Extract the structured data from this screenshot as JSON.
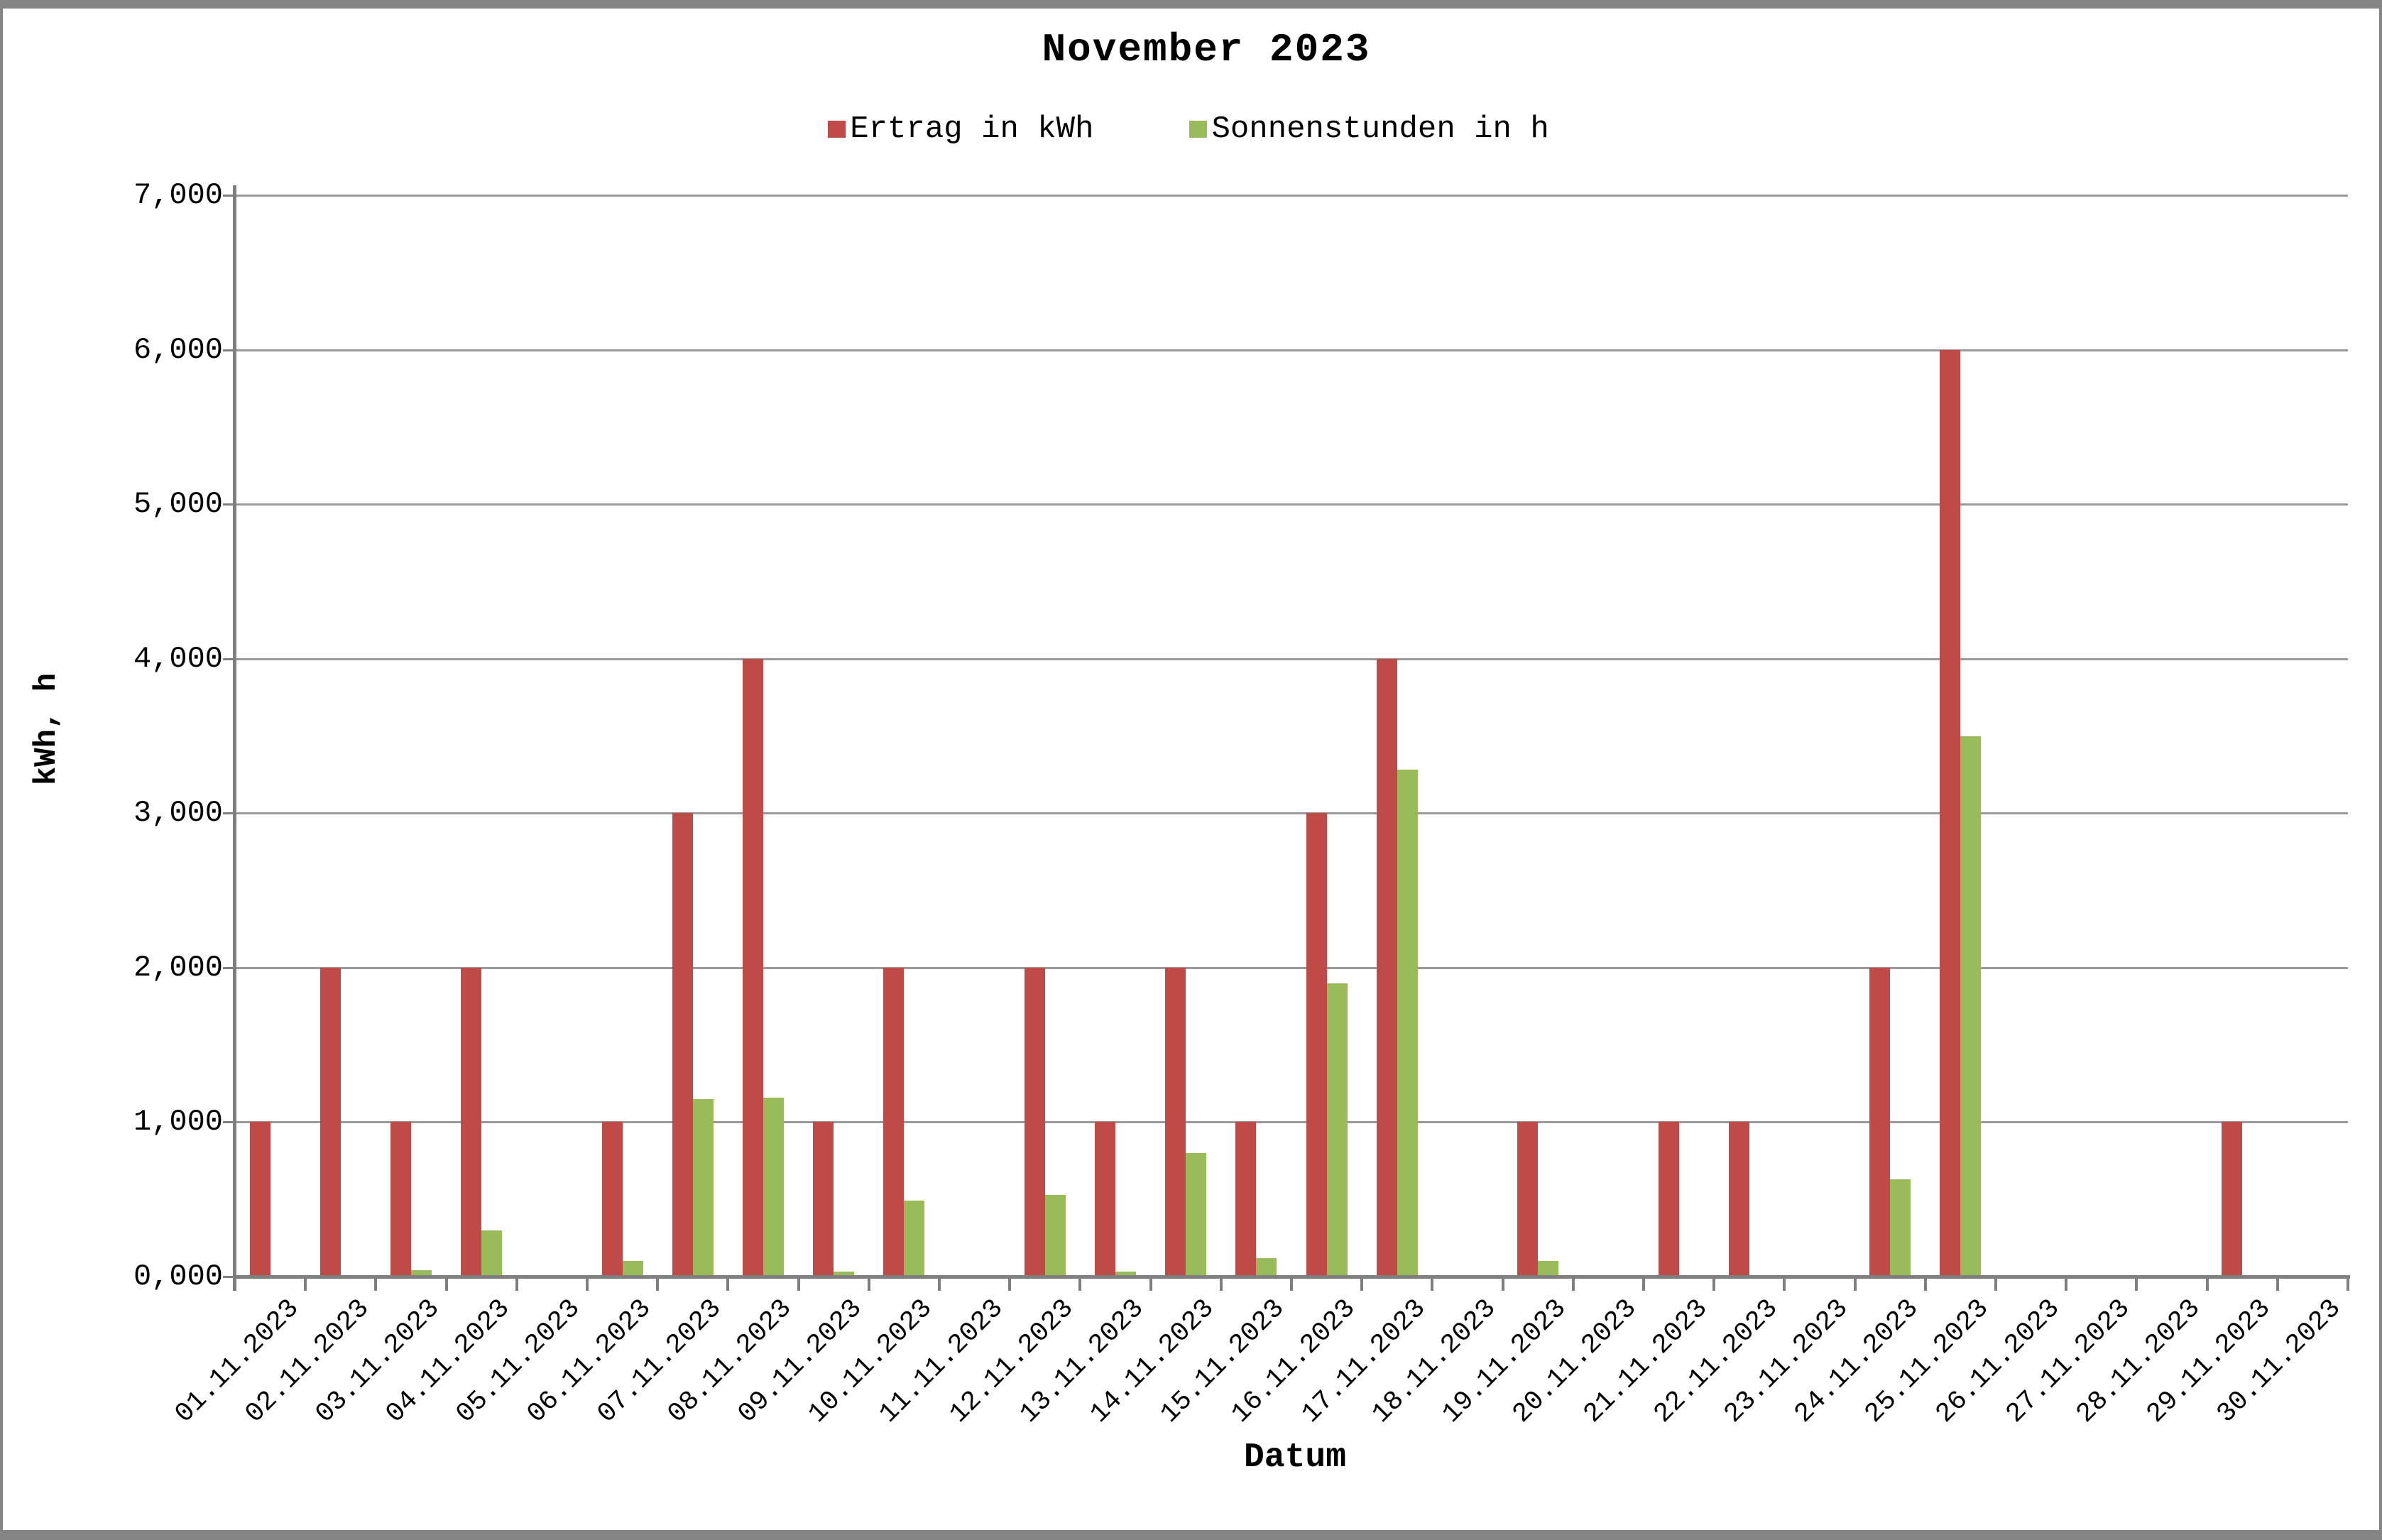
{
  "frame": {
    "border_color": "#848484",
    "background": "#ffffff"
  },
  "chart_data": {
    "type": "bar",
    "title": "November 2023",
    "xlabel": "Datum",
    "ylabel": "kWh, h",
    "categories": [
      "01.11.2023",
      "02.11.2023",
      "03.11.2023",
      "04.11.2023",
      "05.11.2023",
      "06.11.2023",
      "07.11.2023",
      "08.11.2023",
      "09.11.2023",
      "10.11.2023",
      "11.11.2023",
      "12.11.2023",
      "13.11.2023",
      "14.11.2023",
      "15.11.2023",
      "16.11.2023",
      "17.11.2023",
      "18.11.2023",
      "19.11.2023",
      "20.11.2023",
      "21.11.2023",
      "22.11.2023",
      "23.11.2023",
      "24.11.2023",
      "25.11.2023",
      "26.11.2023",
      "27.11.2023",
      "28.11.2023",
      "29.11.2023",
      "30.11.2023"
    ],
    "series": [
      {
        "name": "Ertrag in kWh",
        "color": "#BE4B48",
        "values": [
          1000,
          2000,
          1000,
          2000,
          0,
          1000,
          3000,
          4000,
          1000,
          2000,
          0,
          2000,
          1000,
          2000,
          1000,
          3000,
          4000,
          0,
          1000,
          0,
          1000,
          1000,
          0,
          2000,
          6000,
          0,
          0,
          0,
          1000,
          0
        ]
      },
      {
        "name": "Sonnenstunden in h",
        "color": "#9ABB59",
        "values": [
          0,
          0,
          40,
          300,
          0,
          100,
          1150,
          1160,
          30,
          490,
          0,
          530,
          30,
          800,
          120,
          1900,
          3280,
          0,
          100,
          0,
          0,
          0,
          0,
          630,
          3500,
          0,
          0,
          0,
          0,
          0
        ]
      }
    ],
    "ylim": [
      0,
      7000
    ],
    "ytick_step": 1000,
    "ytick_labels": [
      "0,000",
      "1,000",
      "2,000",
      "3,000",
      "4,000",
      "5,000",
      "6,000",
      "7,000"
    ],
    "grid": true,
    "gridline_color": "#9a9a9a",
    "axis_color": "#7f7f7f",
    "legend_position": "top"
  }
}
